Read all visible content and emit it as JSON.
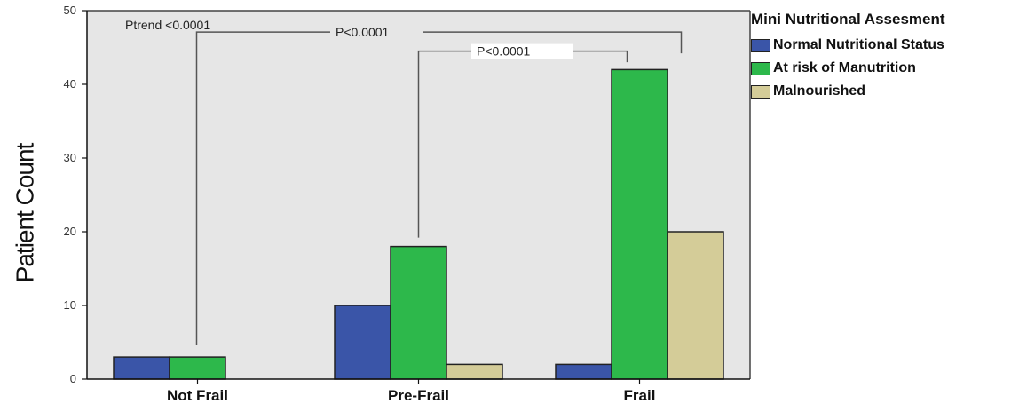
{
  "chart_data": {
    "type": "bar",
    "categories": [
      "Not Frail",
      "Pre-Frail",
      "Frail"
    ],
    "series": [
      {
        "name": "Normal Nutritional Status",
        "values": [
          3,
          10,
          2
        ],
        "color": "#3a55a8"
      },
      {
        "name": "At risk of Manutrition",
        "values": [
          3,
          18,
          42
        ],
        "color": "#2db84b"
      },
      {
        "name": "Malnourished",
        "values": [
          0,
          2,
          20
        ],
        "color": "#d4cc98"
      }
    ],
    "ylabel": "Patient Count",
    "xlabel": "",
    "ylim": [
      0,
      50
    ],
    "yticks": [
      0,
      10,
      20,
      30,
      40,
      50
    ],
    "legend_title": "Mini Nutritional Assesment",
    "legend_position": "right",
    "plot_background": "#e6e6e6",
    "annotations": {
      "ptrend": "Ptrend <0.0001",
      "p_notfrail_frail": "P<0.0001",
      "p_prefrail_frail": "P<0.0001"
    }
  }
}
